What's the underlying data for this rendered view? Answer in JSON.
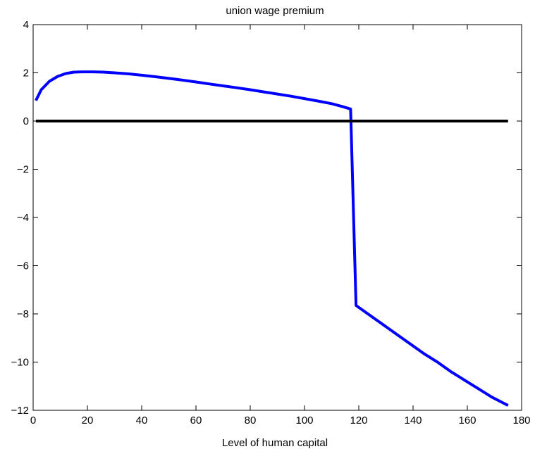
{
  "chart_data": {
    "type": "line",
    "title": "union wage premium",
    "xlabel": "Level of human capital",
    "ylabel": "",
    "xlim": [
      0,
      180
    ],
    "ylim": [
      -12,
      4
    ],
    "xticks": [
      0,
      20,
      40,
      60,
      80,
      100,
      120,
      140,
      160,
      180
    ],
    "yticks": [
      -12,
      -10,
      -8,
      -6,
      -4,
      -2,
      0,
      2,
      4
    ],
    "grid": false,
    "legend": "none",
    "series": [
      {
        "color": "#0000ff",
        "x": [
          1,
          3,
          6,
          9,
          12,
          15,
          18,
          22,
          26,
          30,
          35,
          40,
          45,
          50,
          55,
          60,
          65,
          70,
          75,
          80,
          85,
          90,
          95,
          100,
          105,
          110,
          114,
          117,
          119,
          124,
          129,
          134,
          139,
          144,
          149,
          154,
          159,
          164,
          169,
          175
        ],
        "y": [
          0.85,
          1.3,
          1.65,
          1.85,
          1.97,
          2.03,
          2.04,
          2.04,
          2.03,
          2.0,
          1.96,
          1.9,
          1.84,
          1.77,
          1.7,
          1.62,
          1.54,
          1.46,
          1.38,
          1.3,
          1.21,
          1.12,
          1.03,
          0.93,
          0.83,
          0.72,
          0.6,
          0.5,
          -7.65,
          -8.05,
          -8.45,
          -8.85,
          -9.25,
          -9.65,
          -10.0,
          -10.4,
          -10.75,
          -11.1,
          -11.45,
          -11.8
        ]
      },
      {
        "color": "#000000",
        "x": [
          1,
          175
        ],
        "y": [
          0,
          0
        ]
      }
    ]
  }
}
